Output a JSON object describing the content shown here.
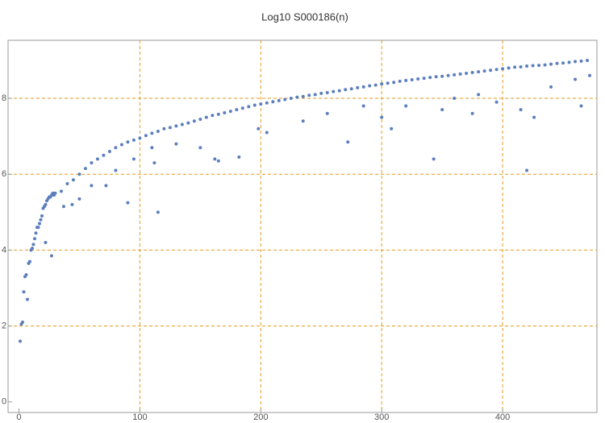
{
  "chart_data": {
    "type": "scatter",
    "title": "Log10 S000186(n)",
    "color": "#5b7fbd",
    "grid": true,
    "grid_color": "#e69a1c",
    "x": [
      1,
      2,
      3,
      4,
      5,
      6,
      7,
      8,
      9,
      10,
      11,
      12,
      13,
      14,
      15,
      16,
      17,
      18,
      19,
      20,
      21,
      22,
      23,
      24,
      25,
      26,
      27,
      28,
      29,
      30,
      35,
      40,
      45,
      50,
      55,
      60,
      65,
      70,
      75,
      80,
      85,
      90,
      95,
      100,
      105,
      110,
      115,
      120,
      125,
      130,
      135,
      140,
      145,
      150,
      155,
      160,
      165,
      170,
      175,
      180,
      185,
      190,
      195,
      200,
      205,
      210,
      215,
      220,
      225,
      230,
      235,
      240,
      245,
      250,
      255,
      260,
      265,
      270,
      275,
      280,
      285,
      290,
      295,
      300,
      305,
      310,
      315,
      320,
      325,
      330,
      335,
      340,
      345,
      350,
      355,
      360,
      365,
      370,
      375,
      380,
      385,
      390,
      395,
      400,
      405,
      410,
      415,
      420,
      425,
      430,
      435,
      440,
      445,
      450,
      455,
      460,
      465,
      470,
      27,
      22,
      37,
      44,
      50,
      72,
      90,
      115,
      112,
      162,
      165,
      182,
      198,
      205,
      272,
      300,
      308,
      343,
      375,
      395,
      415,
      420,
      426,
      465,
      472,
      350,
      440,
      110,
      130,
      150,
      235,
      255,
      285,
      320,
      360,
      380,
      460,
      60,
      80,
      95
    ],
    "values": [
      1.6,
      2.05,
      2.1,
      2.9,
      3.3,
      3.35,
      2.7,
      3.65,
      3.7,
      4.0,
      4.05,
      4.15,
      4.3,
      4.45,
      4.6,
      4.6,
      4.7,
      4.8,
      4.9,
      5.1,
      5.15,
      5.2,
      5.3,
      5.35,
      5.4,
      5.4,
      5.45,
      5.5,
      5.45,
      5.5,
      5.55,
      5.75,
      5.85,
      6.0,
      6.15,
      6.3,
      6.4,
      6.5,
      6.6,
      6.7,
      6.78,
      6.85,
      6.9,
      6.95,
      7.02,
      7.08,
      7.13,
      7.2,
      7.23,
      7.27,
      7.31,
      7.35,
      7.4,
      7.45,
      7.5,
      7.55,
      7.58,
      7.62,
      7.66,
      7.7,
      7.74,
      7.78,
      7.82,
      7.85,
      7.88,
      7.91,
      7.94,
      7.97,
      8.0,
      8.03,
      8.05,
      8.08,
      8.1,
      8.13,
      8.15,
      8.18,
      8.2,
      8.23,
      8.25,
      8.28,
      8.3,
      8.33,
      8.35,
      8.38,
      8.4,
      8.42,
      8.45,
      8.47,
      8.49,
      8.51,
      8.53,
      8.55,
      8.57,
      8.58,
      8.6,
      8.62,
      8.64,
      8.66,
      8.68,
      8.7,
      8.72,
      8.74,
      8.76,
      8.78,
      8.8,
      8.82,
      8.83,
      8.85,
      8.86,
      8.87,
      8.88,
      8.9,
      8.92,
      8.93,
      8.95,
      8.97,
      8.98,
      9.0,
      3.85,
      4.2,
      5.15,
      5.2,
      5.35,
      5.7,
      5.25,
      5.0,
      6.3,
      6.4,
      6.35,
      6.45,
      7.2,
      7.1,
      6.85,
      7.5,
      7.2,
      6.4,
      7.6,
      7.9,
      7.7,
      6.1,
      7.5,
      7.8,
      8.6,
      7.7,
      8.3,
      6.7,
      6.8,
      6.7,
      7.4,
      7.6,
      7.8,
      7.8,
      8.0,
      8.1,
      8.5,
      5.7,
      6.1,
      6.4
    ],
    "xlim": [
      -9,
      478
    ],
    "ylim": [
      -0.28,
      9.53
    ],
    "xticks": [
      0,
      100,
      200,
      300,
      400
    ],
    "yticks": [
      0,
      2,
      4,
      6,
      8
    ]
  }
}
